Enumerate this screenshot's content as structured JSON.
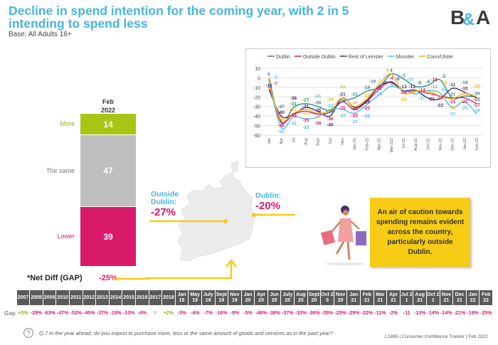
{
  "header": {
    "title": "Decline in spend intention for the coming year, with 2 in 5 intending to spend less",
    "base": "Base: All Adults 16+",
    "logo": "B&A"
  },
  "stacked_bar": {
    "period_line1": "Feb",
    "period_line2": "2022",
    "unit": "%",
    "segments": [
      {
        "label": "More",
        "value": 14,
        "color": "#a8c514"
      },
      {
        "label": "The same",
        "value": 47,
        "color": "#bfbfbf"
      },
      {
        "label": "Lower",
        "value": 39,
        "color": "#d81b6b"
      }
    ],
    "net_label": "*Net Diff (GAP)",
    "net_value": "-25%"
  },
  "regions": {
    "outside_label": "Outside Dublin:",
    "outside_value": "-27%",
    "dublin_label": "Dublin:",
    "dublin_value": "-20%"
  },
  "callout": "An air of caution towards spending remains evident across the country, particularly outside Dublin.",
  "chart_data": {
    "type": "line",
    "categories": [
      "Jan",
      "Apr",
      "Jul",
      "Aug",
      "Sept",
      "Oct",
      "Nov",
      "Jan-21",
      "Feb-21",
      "Mar-21",
      "Mar-212",
      "Jul-21",
      "Aug-21",
      "Oct-21",
      "Nov-21",
      "Dec-21",
      "Jan-22",
      "Feb-22"
    ],
    "ylim": [
      -60,
      10
    ],
    "yticks": [
      10,
      0,
      -10,
      -20,
      -30,
      -40,
      -50,
      -60
    ],
    "grid": true,
    "legend": "top",
    "series": [
      {
        "name": "Dublin",
        "color": "#2a8c82",
        "values": [
          0,
          -47,
          -31,
          -27,
          -30,
          -34,
          -25,
          -21,
          -14,
          -10,
          4,
          -1,
          -9,
          -8,
          -2,
          -21,
          -19,
          -20
        ]
      },
      {
        "name": "Outside Dublin",
        "color": "#d81b6b",
        "values": [
          -7,
          -46,
          -38,
          -35,
          -38,
          -36,
          -25,
          -33,
          -25,
          -12,
          -4,
          -14,
          -14,
          -16,
          -19,
          -21,
          -21,
          -27
        ]
      },
      {
        "name": "Rest of Leinster",
        "color": "#4b2a6e",
        "values": [
          -12,
          -40,
          -38,
          -31,
          -35,
          -40,
          -21,
          -31,
          -24,
          -9,
          -5,
          -13,
          -13,
          -21,
          -22,
          -11,
          -15,
          -21
        ]
      },
      {
        "name": "Munster",
        "color": "#5bc0e6",
        "values": [
          -3,
          -52,
          -41,
          -43,
          -41,
          -33,
          -33,
          -37,
          -28,
          -18,
          -9,
          -13,
          -17,
          -13,
          -16,
          -31,
          -25,
          -38
        ]
      },
      {
        "name": "Conn/Ulster",
        "color": "#f5b71e",
        "values": [
          -6,
          -44,
          -37,
          -33,
          -37,
          -34,
          -21,
          -30,
          -22,
          -7,
          4,
          -16,
          -14,
          -14,
          -19,
          -22,
          -16,
          -20
        ]
      }
    ]
  },
  "gap_table": {
    "row_label": "Gap",
    "columns": [
      "2007",
      "2008",
      "2009",
      "2010",
      "2011",
      "2012",
      "2013",
      "2014",
      "2015",
      "2016",
      "2017",
      "2018",
      "Jan 19",
      "May 19",
      "July 19",
      "Sept 19",
      "Nov 19",
      "Jan 20",
      "Apr 20",
      "Jun 20",
      "July 20",
      "Aug 20",
      "Sept 20",
      "Oct 20",
      "Nov 20",
      "Jan 21",
      "Feb 21",
      "Mar 21",
      "Apr 21",
      "Jul 21",
      "Aug 21",
      "Oct 21",
      "Nov 21",
      "Dec 21",
      "Jan 22",
      "Feb 22"
    ],
    "values": [
      "+5%",
      "-29%",
      "-63%",
      "-47%",
      "-52%",
      "-45%",
      "-37%",
      "-19%",
      "-13%",
      "-4%",
      "=",
      "+2%",
      "-3%",
      "-4%",
      "-7%",
      "-16%",
      "-9%",
      "-5%",
      "-46%",
      "-38%",
      "-37%",
      "-33%",
      "-36%",
      "-35%",
      "-25%",
      "-29%",
      "-22%",
      "-11%",
      "-2%",
      "-11",
      "-13%",
      "-14%",
      "-14%",
      "-21%",
      "-19%",
      "-25%"
    ]
  },
  "footer": {
    "question": "Q.7 In the year ahead, do you expect to purchase more, less or the same amount of goods and services as in the past year?",
    "source": "J.1665 | Consumer Confidence Tracker | Feb 2022",
    "help_icon": "?"
  }
}
